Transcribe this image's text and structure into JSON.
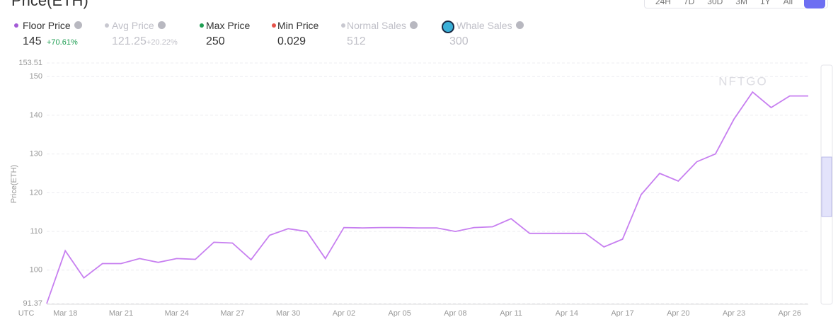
{
  "title": "Price(ETH)",
  "time_ranges": [
    "24H",
    "7D",
    "30D",
    "3M",
    "1Y",
    "All"
  ],
  "watermark": "NFTGO",
  "chart_data": {
    "type": "line",
    "y_label": "Price(ETH)",
    "x_note": "UTC",
    "categories": [
      null,
      "Mar 18",
      null,
      null,
      "Mar 21",
      null,
      null,
      "Mar 24",
      null,
      null,
      "Mar 27",
      null,
      null,
      "Mar 30",
      null,
      null,
      "Apr 02",
      null,
      null,
      "Apr 05",
      null,
      null,
      "Apr 08",
      null,
      null,
      "Apr 11",
      null,
      null,
      "Apr 14",
      null,
      null,
      "Apr 17",
      null,
      null,
      "Apr 20",
      null,
      null,
      "Apr 23",
      null,
      null,
      "Apr 26",
      null
    ],
    "series": [
      {
        "name": "Floor Price",
        "color": "#c77ff0",
        "values": [
          91.37,
          105,
          98,
          101.7,
          101.7,
          103,
          102,
          103,
          102.8,
          107.2,
          107,
          102.7,
          109,
          110.7,
          110,
          103,
          111,
          110.9,
          111,
          111,
          110.9,
          110.9,
          110,
          111,
          111.2,
          113.3,
          109.5,
          109.5,
          109.5,
          109.5,
          106,
          108,
          119.5,
          125,
          123,
          128,
          130,
          139,
          146,
          142,
          145,
          145
        ]
      }
    ],
    "ylim": [
      91.37,
      153.51
    ],
    "yticks": [
      91.37,
      100,
      110,
      120,
      130,
      140,
      150,
      153.51
    ],
    "grid": true,
    "stats": [
      {
        "value": "145",
        "change": "+70.61%",
        "dot": "#a35bd6",
        "active": true
      },
      {
        "name": "Avg Price",
        "value": "121.25",
        "change": "+20.22%",
        "dot": "#c8c8d0",
        "active": false
      },
      {
        "name": "Max Price",
        "value": "250",
        "dot": "#1e9e52",
        "active": true
      },
      {
        "name": "Min Price",
        "value": "0.029",
        "dot": "#e5534b",
        "active": true
      },
      {
        "name": "Normal Sales",
        "value": "512",
        "dot": "#c8c8d0",
        "active": false
      },
      {
        "name": "Whale Sales",
        "value": "300",
        "active": false
      }
    ]
  }
}
